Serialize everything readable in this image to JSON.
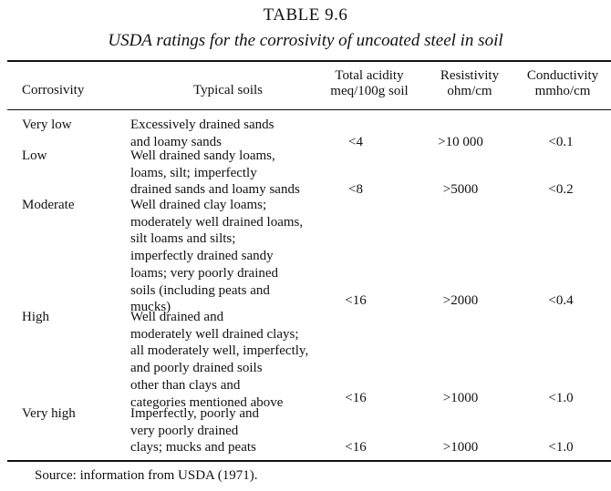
{
  "table_number": "TABLE 9.6",
  "caption": "USDA ratings for the corrosivity of uncoated steel in soil",
  "headers": {
    "corrosivity": "Corrosivity",
    "typical_soils": "Typical soils",
    "acidity_line1": "Total acidity",
    "acidity_line2": "meq/100g soil",
    "resistivity_line1": "Resistivity",
    "resistivity_line2": "ohm/cm",
    "conductivity_line1": "Conductivity",
    "conductivity_line2": "mmho/cm"
  },
  "rows": [
    {
      "corrosivity": "Very low",
      "soils": "Excessively drained sands\nand loamy sands",
      "acidity": "<4",
      "resistivity": ">10 000",
      "conductivity": "<0.1"
    },
    {
      "corrosivity": "Low",
      "soils": "Well drained sandy loams,\nloams, silt; imperfectly\ndrained sands and loamy sands",
      "acidity": "<8",
      "resistivity": ">5000",
      "conductivity": "<0.2"
    },
    {
      "corrosivity": "Moderate",
      "soils": "Well drained clay loams;\nmoderately well drained loams,\nsilt loams and silts;\nimperfectly drained sandy\nloams; very poorly drained\nsoils (including peats and\nmucks)",
      "acidity": "<16",
      "resistivity": ">2000",
      "conductivity": "<0.4"
    },
    {
      "corrosivity": "High",
      "soils": "Well drained and\nmoderately well drained clays;\nall moderately well, imperfectly,\nand poorly drained soils\nother than clays and\ncategories mentioned above",
      "acidity": "<16",
      "resistivity": ">1000",
      "conductivity": "<1.0"
    },
    {
      "corrosivity": "Very high",
      "soils": "Imperfectly, poorly and\nvery poorly drained\nclays; mucks and peats",
      "acidity": "<16",
      "resistivity": ">1000",
      "conductivity": "<1.0"
    }
  ],
  "source": "Source: information from USDA (1971)."
}
